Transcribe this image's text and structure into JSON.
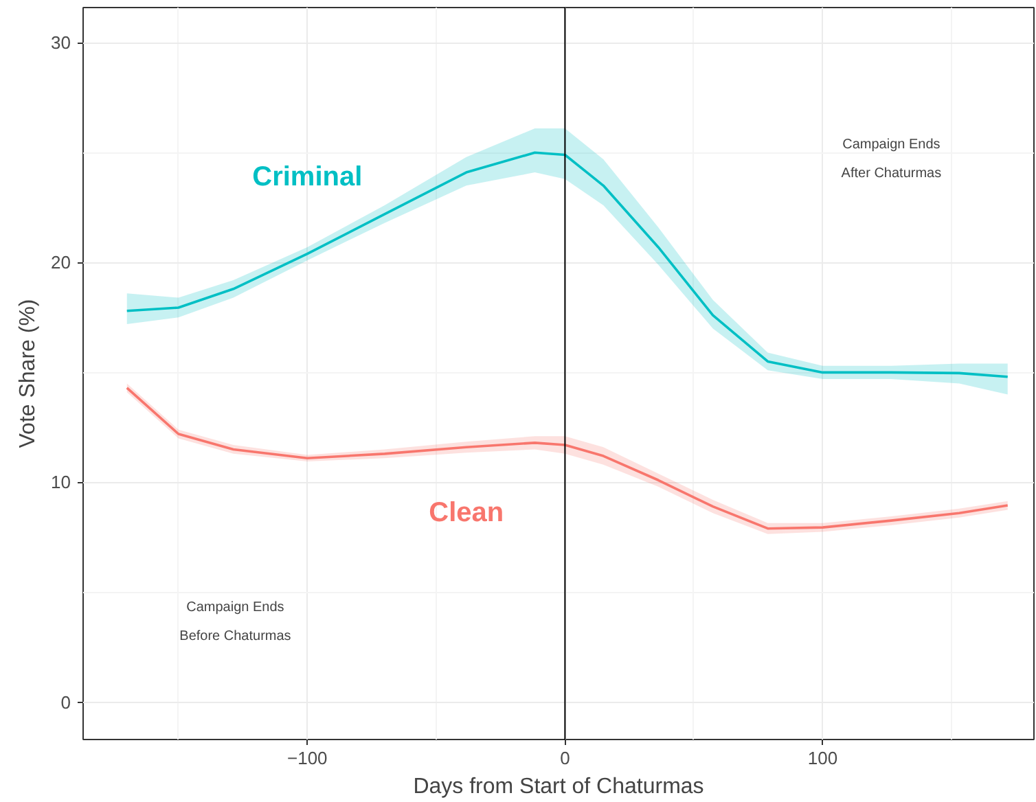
{
  "chart_data": {
    "type": "line",
    "xlabel": "Days from Start of Chaturmas",
    "ylabel": "Vote Share (%)",
    "x": [
      -170,
      -150,
      -128.7,
      -100,
      -70,
      -38.3,
      -11.7,
      0,
      14.9,
      36.2,
      57.4,
      78.7,
      100,
      126.6,
      153,
      171.8
    ],
    "series": [
      {
        "name": "Criminal",
        "color": "#00bfc4",
        "values": [
          17.8,
          17.95,
          18.8,
          20.4,
          22.2,
          24.1,
          25.0,
          24.9,
          23.5,
          20.7,
          17.6,
          15.5,
          15.0,
          15.0,
          14.97,
          14.8
        ],
        "lower": [
          17.2,
          17.5,
          18.4,
          20.1,
          21.8,
          23.5,
          24.1,
          23.8,
          22.6,
          19.9,
          17.0,
          15.1,
          14.7,
          14.7,
          14.5,
          14.0
        ],
        "upper": [
          18.6,
          18.4,
          19.2,
          20.7,
          22.6,
          24.8,
          26.1,
          26.1,
          24.7,
          21.6,
          18.3,
          15.9,
          15.3,
          15.3,
          15.4,
          15.4
        ]
      },
      {
        "name": "Clean",
        "color": "#f8766d",
        "values": [
          14.3,
          12.2,
          11.5,
          11.1,
          11.3,
          11.6,
          11.8,
          11.7,
          11.2,
          10.1,
          8.9,
          7.9,
          7.95,
          8.26,
          8.6,
          8.95
        ],
        "lower": [
          14.1,
          12.0,
          11.3,
          10.95,
          11.1,
          11.35,
          11.5,
          11.3,
          10.8,
          9.8,
          8.6,
          7.65,
          7.75,
          8.05,
          8.4,
          8.75
        ],
        "upper": [
          14.5,
          12.4,
          11.7,
          11.25,
          11.5,
          11.85,
          12.1,
          12.1,
          11.6,
          10.4,
          9.2,
          8.15,
          8.15,
          8.45,
          8.8,
          9.15
        ]
      }
    ],
    "xlim": [
      -187,
      182
    ],
    "ylim": [
      -1.7,
      31.6
    ],
    "xticks": [
      {
        "value": -100,
        "label": "−100"
      },
      0,
      100
    ],
    "yticks": [
      0,
      10,
      20,
      30
    ],
    "ref_lines": [
      {
        "axis": "x",
        "value": 0,
        "color": "#000000"
      }
    ],
    "annotations": [
      "Campaign Ends\nAfter Chaturmas",
      "Campaign Ends\nBefore Chaturmas"
    ],
    "grid": true
  }
}
